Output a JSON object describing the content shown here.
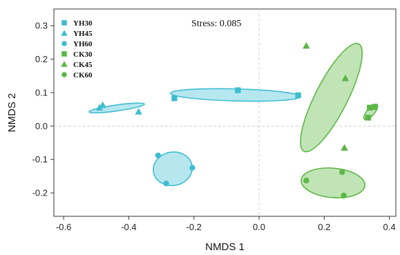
{
  "chart_data": {
    "type": "scatter",
    "title": "",
    "xlabel": "NMDS 1",
    "ylabel": "NMDS 2",
    "xlim": [
      -0.63,
      0.42
    ],
    "ylim": [
      -0.27,
      0.35
    ],
    "xticks": [
      -0.6,
      -0.4,
      -0.2,
      0.0,
      0.2,
      0.4
    ],
    "xtick_labels": [
      "-0.6",
      "-0.4",
      "-0.2",
      "0.0",
      "0.2",
      "0.4"
    ],
    "yticks": [
      -0.2,
      -0.1,
      0.0,
      0.1,
      0.2,
      0.3
    ],
    "ytick_labels": [
      "-0.2",
      "-0.1",
      "0.0",
      "0.1",
      "0.2",
      "0.3"
    ],
    "reference_lines": {
      "x": 0.0,
      "y": 0.0,
      "style": "dashed"
    },
    "annotation": {
      "label": "Stress:",
      "value": "0.085"
    },
    "legend_position": "top-left",
    "series": [
      {
        "name": "YH30",
        "marker": "square",
        "color": "#3fbdd0",
        "fill": "#a9e3ec",
        "points": [
          [
            -0.26,
            0.083
          ],
          [
            -0.065,
            0.107
          ],
          [
            0.12,
            0.092
          ]
        ],
        "ellipse": {
          "cx": -0.072,
          "cy": 0.093,
          "rx": 0.2,
          "ry": 0.018,
          "angle": -1.5
        }
      },
      {
        "name": "YH45",
        "marker": "triangle",
        "color": "#3fbdd0",
        "fill": "#a9e3ec",
        "points": [
          [
            -0.49,
            0.055
          ],
          [
            -0.48,
            0.063
          ],
          [
            -0.37,
            0.043
          ]
        ],
        "ellipse": {
          "cx": -0.437,
          "cy": 0.054,
          "rx": 0.086,
          "ry": 0.009,
          "angle": 8
        }
      },
      {
        "name": "YH60",
        "marker": "circle",
        "color": "#3fbdd0",
        "fill": "#a9e3ec",
        "points": [
          [
            -0.31,
            -0.088
          ],
          [
            -0.205,
            -0.125
          ],
          [
            -0.285,
            -0.172
          ]
        ],
        "ellipse": {
          "cx": -0.265,
          "cy": -0.128,
          "rx": 0.06,
          "ry": 0.05,
          "angle": 10
        }
      },
      {
        "name": "CK30",
        "marker": "square",
        "color": "#5cb646",
        "fill": "#b5dfa8",
        "points": [
          [
            0.335,
            0.025
          ],
          [
            0.34,
            0.055
          ],
          [
            0.355,
            0.057
          ]
        ],
        "ellipse": {
          "cx": 0.343,
          "cy": 0.042,
          "rx": 0.03,
          "ry": 0.011,
          "angle": 50
        }
      },
      {
        "name": "CK45",
        "marker": "triangle",
        "color": "#5cb646",
        "fill": "#b5dfa8",
        "points": [
          [
            0.145,
            0.24
          ],
          [
            0.265,
            0.143
          ],
          [
            0.262,
            -0.065
          ]
        ],
        "ellipse": {
          "cx": 0.222,
          "cy": 0.085,
          "rx": 0.185,
          "ry": 0.048,
          "angle": 63
        }
      },
      {
        "name": "CK60",
        "marker": "circle",
        "color": "#5cb646",
        "fill": "#b5dfa8",
        "points": [
          [
            0.145,
            -0.163
          ],
          [
            0.255,
            -0.138
          ],
          [
            0.26,
            -0.208
          ]
        ],
        "ellipse": {
          "cx": 0.227,
          "cy": -0.17,
          "rx": 0.098,
          "ry": 0.044,
          "angle": -5
        }
      }
    ]
  }
}
